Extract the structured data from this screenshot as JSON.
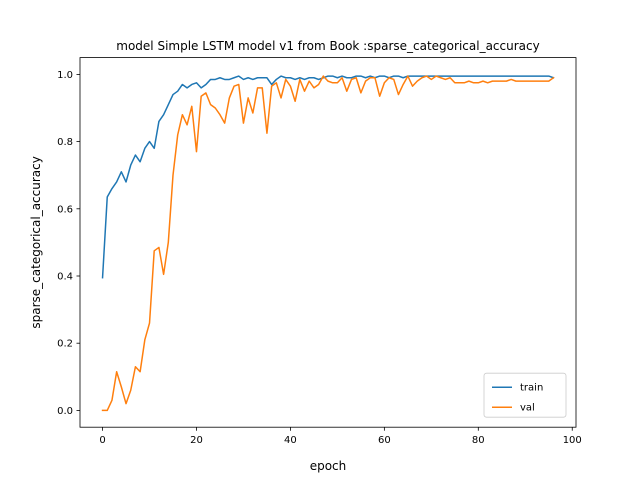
{
  "chart_data": {
    "type": "line",
    "title": "model Simple LSTM model v1 from Book :sparse_categorical_accuracy",
    "xlabel": "epoch",
    "ylabel": "sparse_categorical_accuracy",
    "xlim": [
      -4.8,
      100.8
    ],
    "ylim": [
      -0.05,
      1.05
    ],
    "xticks": [
      0,
      20,
      40,
      60,
      80,
      100
    ],
    "yticks": [
      0.0,
      0.2,
      0.4,
      0.6,
      0.8,
      1.0
    ],
    "xtick_labels": [
      "0",
      "20",
      "40",
      "60",
      "80",
      "100"
    ],
    "ytick_labels": [
      "0.0",
      "0.2",
      "0.4",
      "0.6",
      "0.8",
      "1.0"
    ],
    "legend_position": "lower-right",
    "grid": false,
    "series": [
      {
        "name": "train",
        "color": "#1f77b4",
        "x": [
          0,
          1,
          2,
          3,
          4,
          5,
          6,
          7,
          8,
          9,
          10,
          11,
          12,
          13,
          14,
          15,
          16,
          17,
          18,
          19,
          20,
          21,
          22,
          23,
          24,
          25,
          26,
          27,
          28,
          29,
          30,
          31,
          32,
          33,
          34,
          35,
          36,
          37,
          38,
          39,
          40,
          41,
          42,
          43,
          44,
          45,
          46,
          47,
          48,
          49,
          50,
          51,
          52,
          53,
          54,
          55,
          56,
          57,
          58,
          59,
          60,
          61,
          62,
          63,
          64,
          65,
          66,
          67,
          68,
          69,
          70,
          71,
          72,
          73,
          74,
          75,
          76,
          77,
          78,
          79,
          80,
          81,
          82,
          83,
          84,
          85,
          86,
          87,
          88,
          89,
          90,
          91,
          92,
          93,
          94,
          95,
          96
        ],
        "values": [
          0.395,
          0.635,
          0.66,
          0.68,
          0.71,
          0.68,
          0.73,
          0.76,
          0.74,
          0.78,
          0.8,
          0.78,
          0.86,
          0.88,
          0.91,
          0.94,
          0.95,
          0.97,
          0.96,
          0.97,
          0.975,
          0.96,
          0.97,
          0.985,
          0.985,
          0.99,
          0.985,
          0.985,
          0.99,
          0.995,
          0.985,
          0.99,
          0.985,
          0.99,
          0.99,
          0.99,
          0.97,
          0.985,
          0.995,
          0.99,
          0.99,
          0.985,
          0.99,
          0.985,
          0.99,
          0.99,
          0.985,
          0.99,
          0.995,
          0.995,
          0.99,
          0.995,
          0.99,
          0.99,
          0.995,
          0.995,
          0.99,
          0.995,
          0.99,
          0.995,
          0.995,
          0.99,
          0.995,
          0.995,
          0.99,
          0.995,
          0.995,
          0.995,
          0.995,
          0.995,
          0.995,
          0.995,
          0.995,
          0.995,
          0.995,
          0.995,
          0.995,
          0.995,
          0.995,
          0.995,
          0.995,
          0.995,
          0.995,
          0.995,
          0.995,
          0.995,
          0.995,
          0.995,
          0.995,
          0.995,
          0.995,
          0.995,
          0.995,
          0.995,
          0.995,
          0.995,
          0.99
        ]
      },
      {
        "name": "val",
        "color": "#ff7f0e",
        "x": [
          0,
          1,
          2,
          3,
          4,
          5,
          6,
          7,
          8,
          9,
          10,
          11,
          12,
          13,
          14,
          15,
          16,
          17,
          18,
          19,
          20,
          21,
          22,
          23,
          24,
          25,
          26,
          27,
          28,
          29,
          30,
          31,
          32,
          33,
          34,
          35,
          36,
          37,
          38,
          39,
          40,
          41,
          42,
          43,
          44,
          45,
          46,
          47,
          48,
          49,
          50,
          51,
          52,
          53,
          54,
          55,
          56,
          57,
          58,
          59,
          60,
          61,
          62,
          63,
          64,
          65,
          66,
          67,
          68,
          69,
          70,
          71,
          72,
          73,
          74,
          75,
          76,
          77,
          78,
          79,
          80,
          81,
          82,
          83,
          84,
          85,
          86,
          87,
          88,
          89,
          90,
          91,
          92,
          93,
          94,
          95,
          96
        ],
        "values": [
          0.0,
          0.0,
          0.03,
          0.115,
          0.07,
          0.02,
          0.06,
          0.13,
          0.115,
          0.21,
          0.26,
          0.475,
          0.485,
          0.405,
          0.5,
          0.7,
          0.82,
          0.88,
          0.85,
          0.905,
          0.77,
          0.935,
          0.945,
          0.91,
          0.9,
          0.88,
          0.855,
          0.93,
          0.965,
          0.97,
          0.855,
          0.93,
          0.885,
          0.96,
          0.96,
          0.825,
          0.965,
          0.975,
          0.93,
          0.985,
          0.965,
          0.92,
          0.985,
          0.95,
          0.98,
          0.96,
          0.97,
          0.995,
          0.98,
          0.975,
          0.975,
          0.99,
          0.95,
          0.985,
          0.99,
          0.945,
          0.98,
          0.99,
          0.99,
          0.935,
          0.975,
          0.99,
          0.985,
          0.94,
          0.97,
          0.995,
          0.965,
          0.98,
          0.99,
          0.995,
          0.985,
          0.995,
          0.99,
          0.985,
          0.99,
          0.975,
          0.975,
          0.975,
          0.98,
          0.975,
          0.975,
          0.98,
          0.975,
          0.98,
          0.98,
          0.98,
          0.98,
          0.985,
          0.98,
          0.98,
          0.98,
          0.98,
          0.98,
          0.98,
          0.98,
          0.98,
          0.99
        ]
      }
    ]
  }
}
